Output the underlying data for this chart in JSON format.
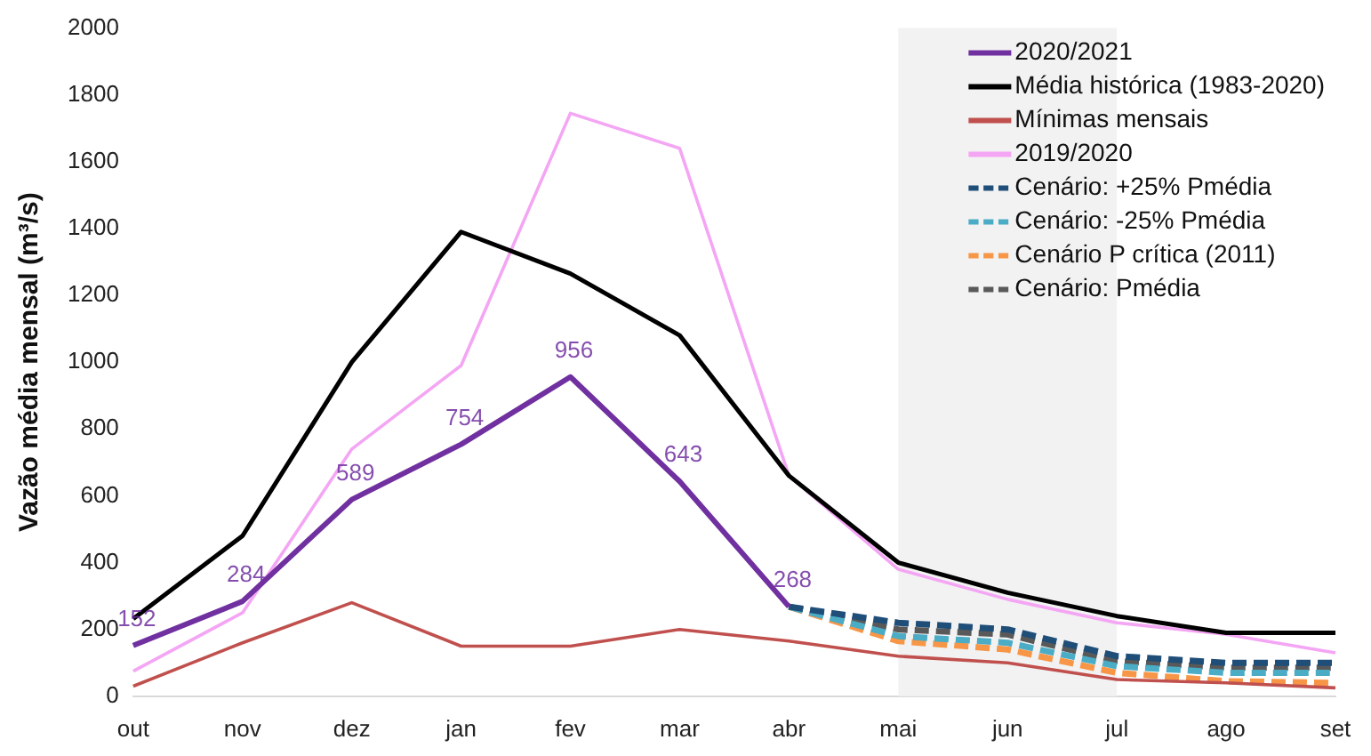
{
  "chart_data": {
    "type": "line",
    "ylabel": "Vazão média mensal (m³/s)",
    "categories": [
      "out",
      "nov",
      "dez",
      "jan",
      "fev",
      "mar",
      "abr",
      "mai",
      "jun",
      "jul",
      "ago",
      "set"
    ],
    "ylim": [
      0,
      2000
    ],
    "yticks": [
      0,
      200,
      400,
      600,
      800,
      1000,
      1200,
      1400,
      1600,
      1800,
      2000
    ],
    "grid": false,
    "legend": "top right",
    "marker": "none",
    "line_style": "solid",
    "bands": [
      {
        "axis": "x",
        "from": "mai",
        "to": "jul",
        "color": "#f2f2f2"
      }
    ],
    "series": [
      {
        "name": "2020/2021",
        "color": "#7030a0",
        "values": [
          152,
          284,
          589,
          754,
          956,
          643,
          268,
          null,
          null,
          null,
          null,
          null
        ],
        "value_labels": [
          "152",
          "284",
          "589",
          "754",
          "956",
          "643",
          "268",
          null,
          null,
          null,
          null,
          null
        ]
      },
      {
        "name": "Média histórica (1983-2020)",
        "color": "#000000",
        "values": [
          232,
          480,
          1000,
          1390,
          1265,
          1080,
          660,
          400,
          310,
          240,
          190,
          190
        ]
      },
      {
        "name": "Mínimas mensais",
        "color": "#c0504d",
        "values": [
          30,
          160,
          280,
          150,
          150,
          200,
          165,
          120,
          100,
          50,
          40,
          25
        ]
      },
      {
        "name": "2019/2020",
        "color": "#f4a6f4",
        "values": [
          75,
          250,
          740,
          990,
          1745,
          1640,
          660,
          380,
          290,
          220,
          185,
          130
        ]
      },
      {
        "name": "Cenário: +25% Pmédia",
        "color": "#1f4e79",
        "line_style": "dashed",
        "values": [
          null,
          null,
          null,
          null,
          null,
          null,
          268,
          220,
          200,
          120,
          100,
          100
        ]
      },
      {
        "name": "Cenário: -25% Pmédia",
        "color": "#4bacc6",
        "line_style": "dashed",
        "values": [
          null,
          null,
          null,
          null,
          null,
          null,
          268,
          180,
          160,
          90,
          70,
          70
        ]
      },
      {
        "name": "Cenário P crítica (2011)",
        "color": "#f79646",
        "line_style": "dashed",
        "values": [
          null,
          null,
          null,
          null,
          null,
          null,
          268,
          165,
          140,
          70,
          45,
          40
        ]
      },
      {
        "name": "Cenário: Pmédia",
        "color": "#595959",
        "line_style": "dashed",
        "values": [
          null,
          null,
          null,
          null,
          null,
          null,
          268,
          200,
          185,
          105,
          85,
          85
        ]
      }
    ]
  }
}
